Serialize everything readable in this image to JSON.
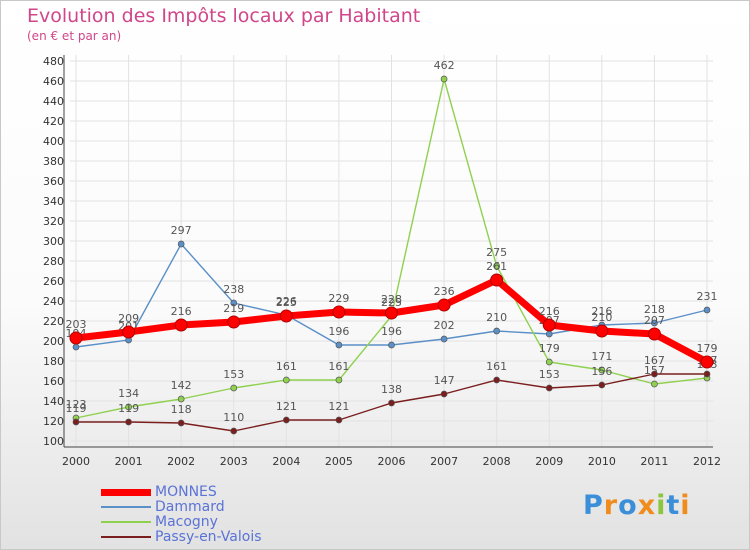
{
  "title": "Evolution des Impôts locaux par Habitant",
  "subtitle": "(en € et par an)",
  "logo": {
    "text": "Proxiti",
    "letter_colors": [
      "#3a8fd8",
      "#f08c1e",
      "#3a8fd8",
      "#f08c1e",
      "#8cc63e",
      "#3a8fd8",
      "#f08c1e"
    ]
  },
  "chart_data": {
    "type": "line",
    "x": [
      "2000",
      "2001",
      "2002",
      "2003",
      "2004",
      "2005",
      "2006",
      "2007",
      "2008",
      "2009",
      "2010",
      "2011",
      "2012"
    ],
    "ylim": [
      100,
      480
    ],
    "yticks": [
      "100",
      "120",
      "140",
      "160",
      "180",
      "200",
      "220",
      "240",
      "260",
      "280",
      "300",
      "320",
      "340",
      "360",
      "380",
      "400",
      "420",
      "440",
      "460",
      "480"
    ],
    "grid": true,
    "legend_position": "bottom-left",
    "series": [
      {
        "name": "Dammard",
        "color": "#5b8fc7",
        "values": [
          194,
          201,
          297,
          238,
          226,
          196,
          196,
          202,
          210,
          207,
          216,
          218,
          231
        ]
      },
      {
        "name": "Macogny",
        "color": "#8fd14f",
        "values": [
          123,
          134,
          142,
          153,
          161,
          161,
          225,
          462,
          275,
          179,
          171,
          157,
          163
        ]
      },
      {
        "name": "Passy-en-Valois",
        "color": "#7a1e1e",
        "values": [
          119,
          119,
          118,
          110,
          121,
          121,
          138,
          147,
          161,
          153,
          156,
          167,
          167
        ]
      },
      {
        "name": "MONNES",
        "color": "#ff0000",
        "values": [
          203,
          209,
          216,
          219,
          225,
          229,
          228,
          236,
          261,
          216,
          210,
          207,
          179
        ]
      }
    ],
    "legend_order": [
      "MONNES",
      "Dammard",
      "Macogny",
      "Passy-en-Valois"
    ]
  }
}
